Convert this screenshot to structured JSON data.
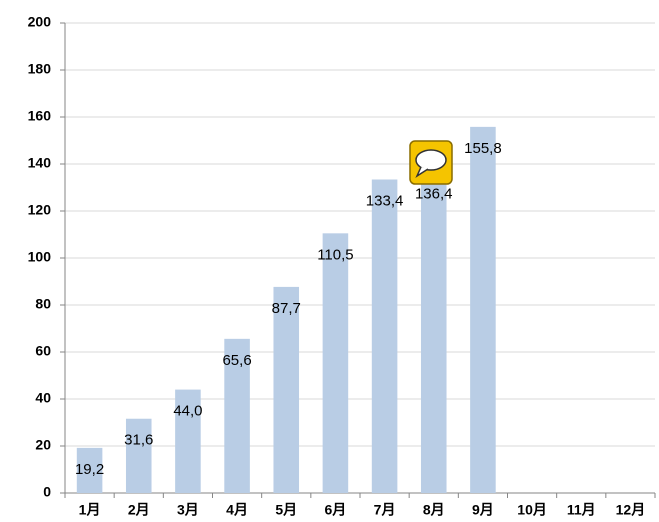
{
  "chart_data": {
    "type": "bar",
    "categories": [
      "1月",
      "2月",
      "3月",
      "4月",
      "5月",
      "6月",
      "7月",
      "8月",
      "9月",
      "10月",
      "11月",
      "12月"
    ],
    "values": [
      19.2,
      31.6,
      44.0,
      65.6,
      87.7,
      110.5,
      133.4,
      136.4,
      155.8,
      null,
      null,
      null
    ],
    "value_labels": [
      "19,2",
      "31,6",
      "44,0",
      "65,6",
      "87,7",
      "110,5",
      "133,4",
      "136,4",
      "155,8",
      null,
      null,
      null
    ],
    "color": "#b9cde5",
    "ylim": [
      0,
      200
    ],
    "yticks": [
      0,
      20,
      40,
      60,
      80,
      100,
      120,
      140,
      160,
      180,
      200
    ],
    "grid": true
  }
}
